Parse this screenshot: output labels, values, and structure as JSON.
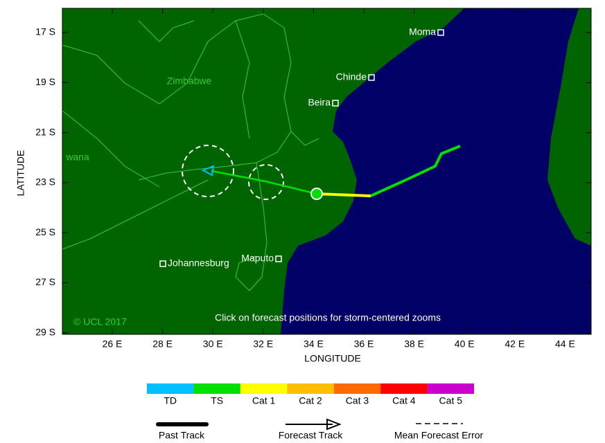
{
  "map": {
    "x_label": "LONGITUDE",
    "y_label": "LATITUDE",
    "x_ticks": [
      "26 E",
      "28 E",
      "30 E",
      "32 E",
      "34 E",
      "36 E",
      "38 E",
      "40 E",
      "42 E",
      "44 E"
    ],
    "y_ticks": [
      "17 S",
      "19 S",
      "21 S",
      "23 S",
      "25 S",
      "27 S",
      "29 S"
    ],
    "places": [
      "Moma",
      "Chinde",
      "Beira",
      "Maputo",
      "Johannesburg"
    ],
    "country_labels": [
      "Zimbabwe",
      "wana"
    ],
    "credit": "© UCL 2017",
    "note": "Click on forecast positions for storm-centered zooms",
    "legend": {
      "categories": [
        {
          "name": "TD",
          "color": "#00bfff"
        },
        {
          "name": "TS",
          "color": "#00e000"
        },
        {
          "name": "Cat 1",
          "color": "#ffff00"
        },
        {
          "name": "Cat 2",
          "color": "#ffbf00"
        },
        {
          "name": "Cat 3",
          "color": "#ff6a00"
        },
        {
          "name": "Cat 4",
          "color": "#ff0000"
        },
        {
          "name": "Cat 5",
          "color": "#cc00cc"
        }
      ],
      "track_styles": [
        "Past Track",
        "Forecast Track",
        "Mean Forecast Error"
      ]
    }
  }
}
